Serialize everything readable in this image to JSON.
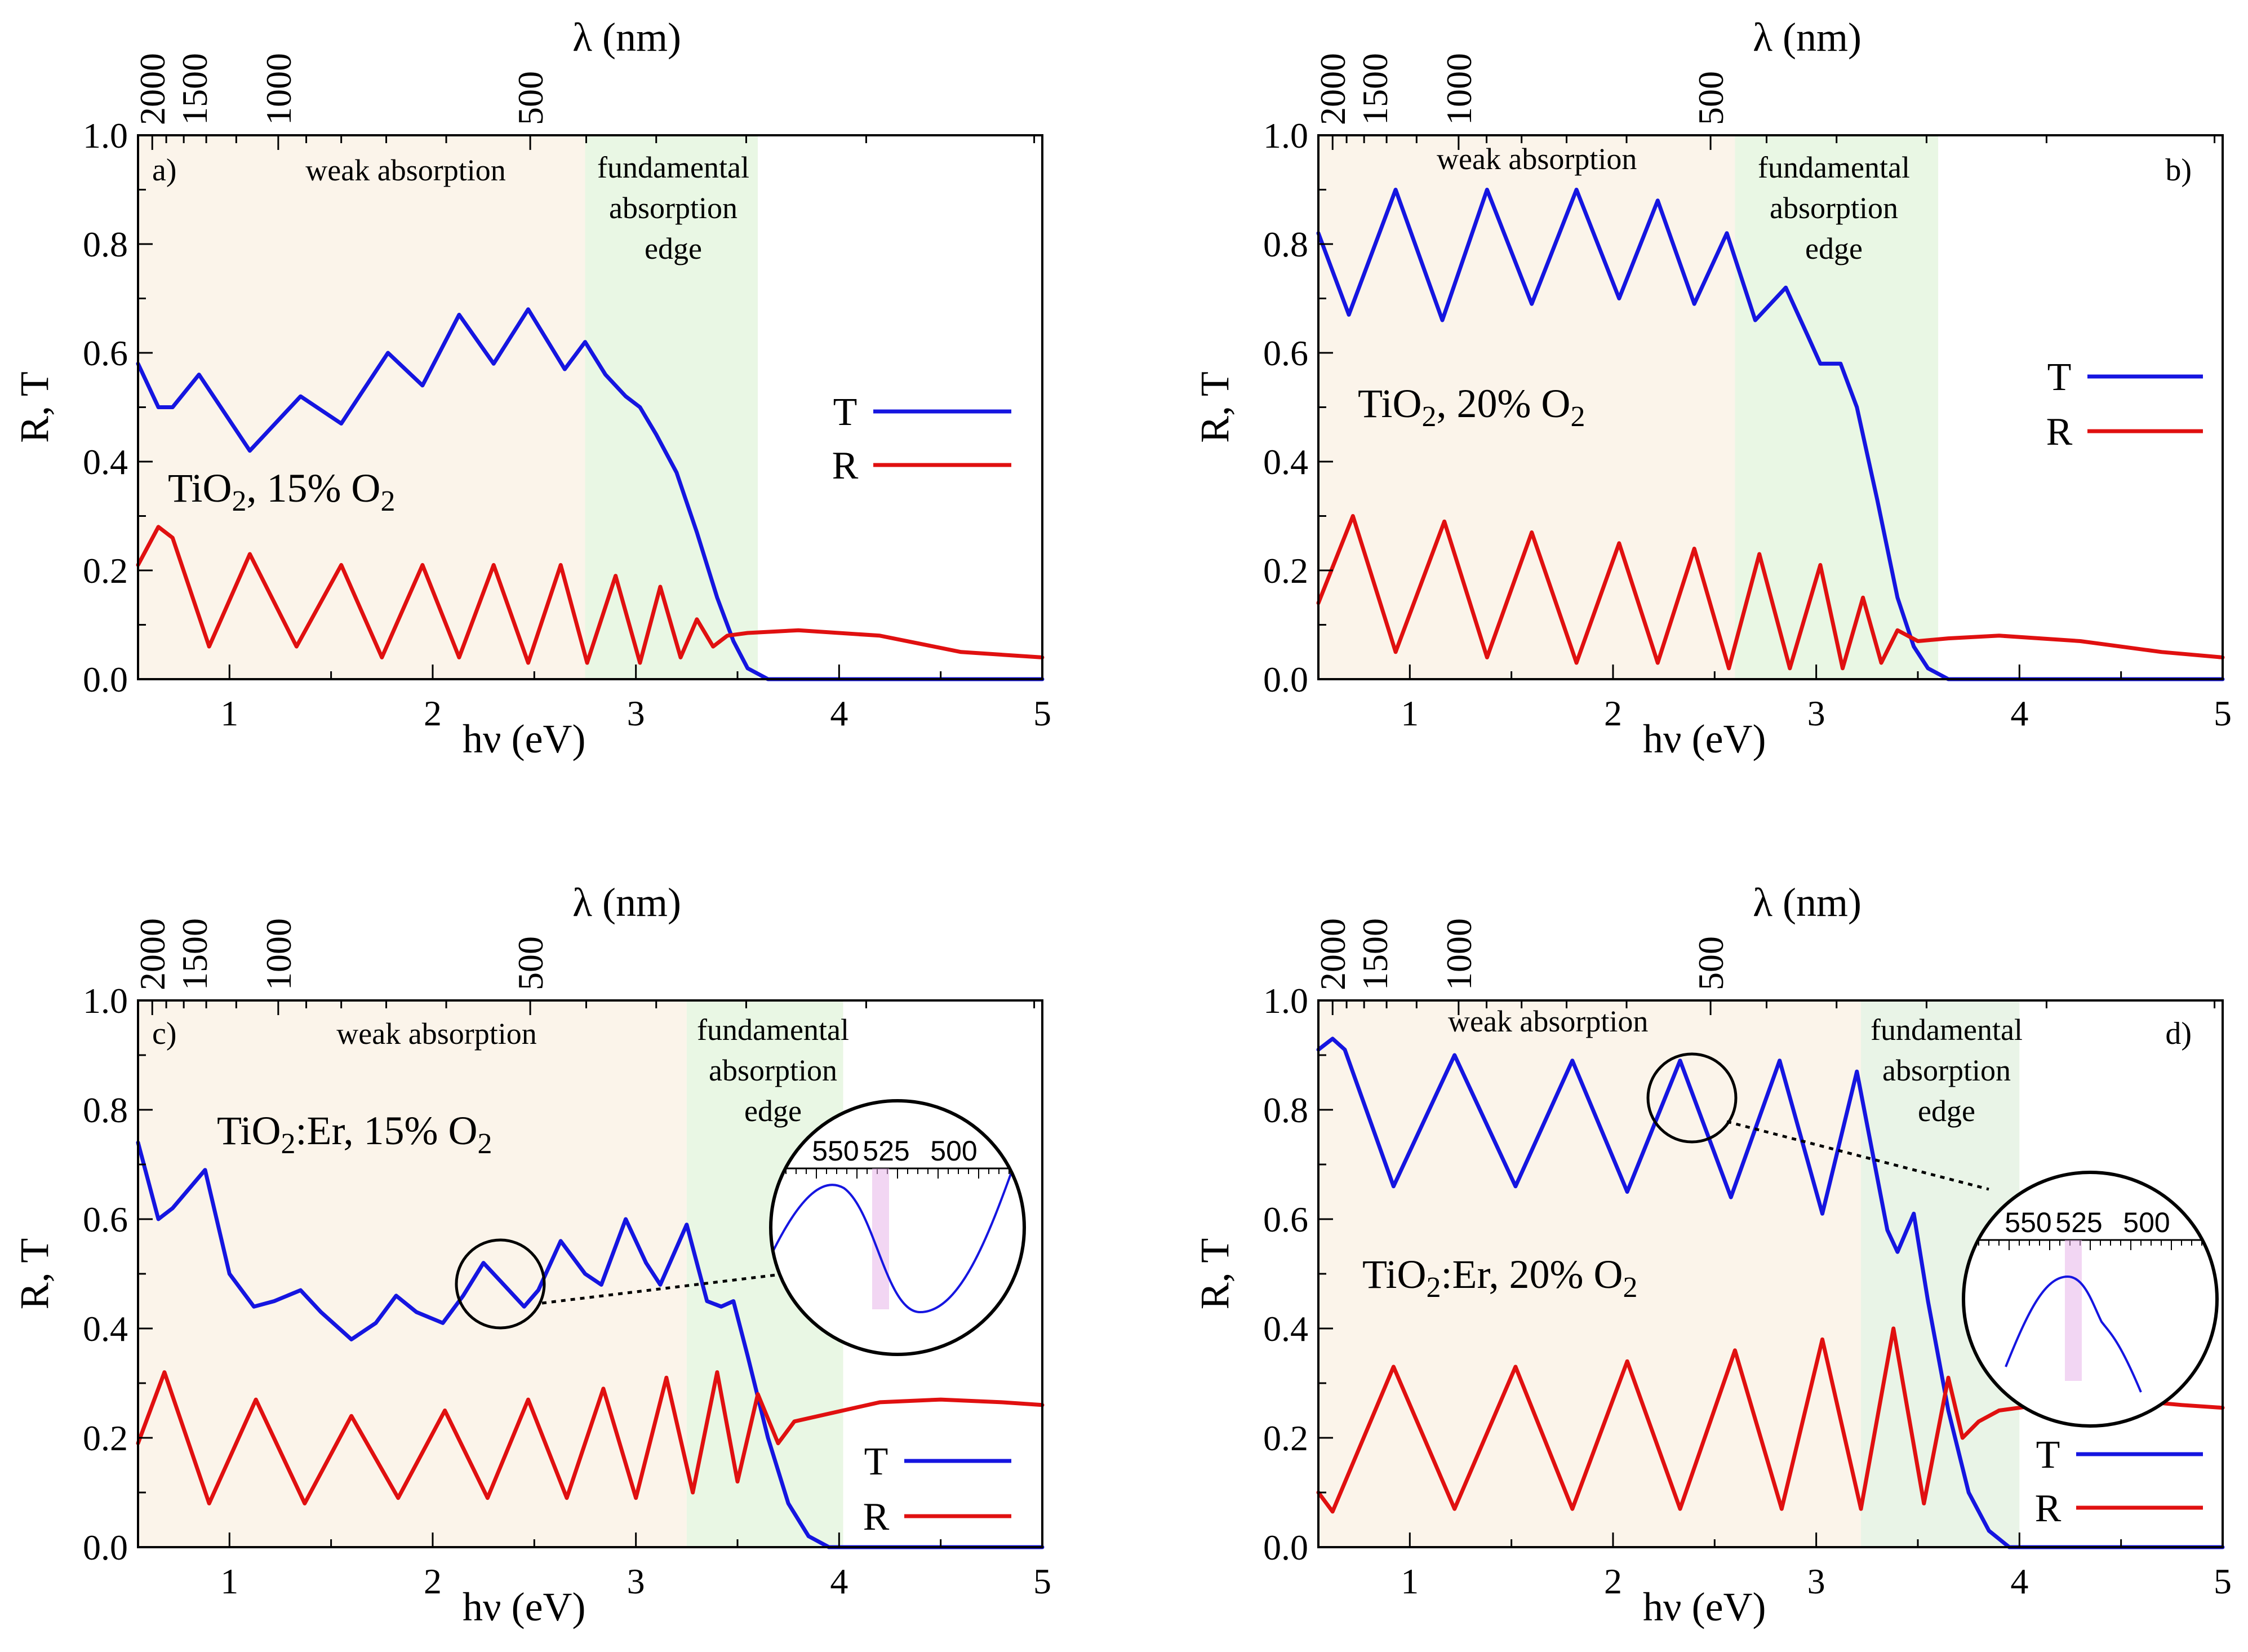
{
  "chart_data": [
    {
      "type": "line",
      "panel": "a)",
      "sample": {
        "base": "TiO",
        "sub1": "2",
        "mid": ", 15% O",
        "sub2": "2"
      },
      "xlabel": "hν (eV)",
      "ylabel": "R, T",
      "top_axis_label": "λ (nm)",
      "xlim": [
        0.55,
        5
      ],
      "ylim": [
        0,
        1
      ],
      "x_ticks": [
        1,
        2,
        3,
        4,
        5
      ],
      "y_ticks": [
        0.0,
        0.2,
        0.4,
        0.6,
        0.8,
        1.0
      ],
      "top_ticks": [
        2000,
        1500,
        1000,
        500
      ],
      "regions": [
        {
          "label": "weak absorption",
          "x0": 0.55,
          "x1": 2.75,
          "color": "#fbf4ea"
        },
        {
          "label": "fundamental\nabsorption\nedge",
          "x0": 2.75,
          "x1": 3.6,
          "color": "#e9f7e4"
        }
      ],
      "legend": [
        "T",
        "R"
      ],
      "series": [
        {
          "name": "T",
          "color": "#1515e0",
          "points": [
            [
              0.55,
              0.58
            ],
            [
              0.65,
              0.5
            ],
            [
              0.72,
              0.5
            ],
            [
              0.85,
              0.56
            ],
            [
              1.1,
              0.42
            ],
            [
              1.35,
              0.52
            ],
            [
              1.55,
              0.47
            ],
            [
              1.78,
              0.6
            ],
            [
              1.95,
              0.54
            ],
            [
              2.13,
              0.67
            ],
            [
              2.3,
              0.58
            ],
            [
              2.47,
              0.68
            ],
            [
              2.65,
              0.57
            ],
            [
              2.75,
              0.62
            ],
            [
              2.85,
              0.56
            ],
            [
              2.95,
              0.52
            ],
            [
              3.02,
              0.5
            ],
            [
              3.1,
              0.45
            ],
            [
              3.2,
              0.38
            ],
            [
              3.3,
              0.27
            ],
            [
              3.4,
              0.15
            ],
            [
              3.48,
              0.07
            ],
            [
              3.55,
              0.02
            ],
            [
              3.65,
              0.0
            ],
            [
              5.0,
              0.0
            ]
          ]
        },
        {
          "name": "R",
          "color": "#e01010",
          "points": [
            [
              0.55,
              0.21
            ],
            [
              0.65,
              0.28
            ],
            [
              0.72,
              0.26
            ],
            [
              0.9,
              0.06
            ],
            [
              1.1,
              0.23
            ],
            [
              1.33,
              0.06
            ],
            [
              1.55,
              0.21
            ],
            [
              1.75,
              0.04
            ],
            [
              1.95,
              0.21
            ],
            [
              2.13,
              0.04
            ],
            [
              2.3,
              0.21
            ],
            [
              2.47,
              0.03
            ],
            [
              2.63,
              0.21
            ],
            [
              2.76,
              0.03
            ],
            [
              2.9,
              0.19
            ],
            [
              3.02,
              0.03
            ],
            [
              3.12,
              0.17
            ],
            [
              3.22,
              0.04
            ],
            [
              3.3,
              0.11
            ],
            [
              3.38,
              0.06
            ],
            [
              3.45,
              0.08
            ],
            [
              3.55,
              0.085
            ],
            [
              3.8,
              0.09
            ],
            [
              4.2,
              0.08
            ],
            [
              4.6,
              0.05
            ],
            [
              5.0,
              0.04
            ]
          ]
        }
      ]
    },
    {
      "type": "line",
      "panel": "b)",
      "sample": {
        "base": "TiO",
        "sub1": "2",
        "mid": ", 20% O",
        "sub2": "2"
      },
      "xlabel": "hν (eV)",
      "ylabel": "R, T",
      "top_axis_label": "λ (nm)",
      "xlim": [
        0.55,
        5
      ],
      "ylim": [
        0,
        1
      ],
      "x_ticks": [
        1,
        2,
        3,
        4,
        5
      ],
      "y_ticks": [
        0.0,
        0.2,
        0.4,
        0.6,
        0.8,
        1.0
      ],
      "top_ticks": [
        2000,
        1500,
        1000,
        500
      ],
      "regions": [
        {
          "label": "weak absorption",
          "x0": 0.55,
          "x1": 2.6,
          "color": "#fbf4ea"
        },
        {
          "label": "fundamental\nabsorption\nedge",
          "x0": 2.6,
          "x1": 3.6,
          "color": "#e9f7e4"
        }
      ],
      "legend": [
        "T",
        "R"
      ],
      "series": [
        {
          "name": "T",
          "color": "#1515e0",
          "points": [
            [
              0.55,
              0.82
            ],
            [
              0.7,
              0.67
            ],
            [
              0.93,
              0.9
            ],
            [
              1.16,
              0.66
            ],
            [
              1.38,
              0.9
            ],
            [
              1.6,
              0.69
            ],
            [
              1.82,
              0.9
            ],
            [
              2.03,
              0.7
            ],
            [
              2.22,
              0.88
            ],
            [
              2.4,
              0.69
            ],
            [
              2.56,
              0.82
            ],
            [
              2.7,
              0.66
            ],
            [
              2.85,
              0.72
            ],
            [
              2.96,
              0.63
            ],
            [
              3.02,
              0.58
            ],
            [
              3.12,
              0.58
            ],
            [
              3.2,
              0.5
            ],
            [
              3.3,
              0.33
            ],
            [
              3.4,
              0.15
            ],
            [
              3.48,
              0.06
            ],
            [
              3.55,
              0.02
            ],
            [
              3.65,
              0.0
            ],
            [
              5.0,
              0.0
            ]
          ]
        },
        {
          "name": "R",
          "color": "#e01010",
          "points": [
            [
              0.55,
              0.14
            ],
            [
              0.72,
              0.3
            ],
            [
              0.93,
              0.05
            ],
            [
              1.17,
              0.29
            ],
            [
              1.38,
              0.04
            ],
            [
              1.6,
              0.27
            ],
            [
              1.82,
              0.03
            ],
            [
              2.03,
              0.25
            ],
            [
              2.22,
              0.03
            ],
            [
              2.4,
              0.24
            ],
            [
              2.57,
              0.02
            ],
            [
              2.72,
              0.23
            ],
            [
              2.87,
              0.02
            ],
            [
              3.02,
              0.21
            ],
            [
              3.13,
              0.02
            ],
            [
              3.23,
              0.15
            ],
            [
              3.32,
              0.03
            ],
            [
              3.4,
              0.09
            ],
            [
              3.5,
              0.07
            ],
            [
              3.65,
              0.075
            ],
            [
              3.9,
              0.08
            ],
            [
              4.3,
              0.07
            ],
            [
              4.7,
              0.05
            ],
            [
              5.0,
              0.04
            ]
          ]
        }
      ]
    },
    {
      "type": "line",
      "panel": "c)",
      "sample": {
        "base": "TiO",
        "sub1": "2",
        "mid": ":Er, 15% O",
        "sub2": "2"
      },
      "xlabel": "hν (eV)",
      "ylabel": "R, T",
      "top_axis_label": "λ (nm)",
      "xlim": [
        0.55,
        5
      ],
      "ylim": [
        0,
        1
      ],
      "x_ticks": [
        1,
        2,
        3,
        4,
        5
      ],
      "y_ticks": [
        0.0,
        0.2,
        0.4,
        0.6,
        0.8,
        1.0
      ],
      "top_ticks": [
        2000,
        1500,
        1000,
        500
      ],
      "regions": [
        {
          "label": "weak absorption",
          "x0": 0.55,
          "x1": 3.25,
          "color": "#fbf4ea"
        },
        {
          "label": "fundamental\nabsorption\nedge",
          "x0": 3.25,
          "x1": 4.02,
          "color": "#e9f7e4"
        }
      ],
      "legend": [
        "T",
        "R"
      ],
      "inset": {
        "ticks": [
          "550",
          "525",
          "500"
        ],
        "highlight_nm": 525
      },
      "series": [
        {
          "name": "T",
          "color": "#1515e0",
          "points": [
            [
              0.55,
              0.74
            ],
            [
              0.65,
              0.6
            ],
            [
              0.72,
              0.62
            ],
            [
              0.88,
              0.69
            ],
            [
              1.0,
              0.5
            ],
            [
              1.12,
              0.44
            ],
            [
              1.22,
              0.45
            ],
            [
              1.35,
              0.47
            ],
            [
              1.45,
              0.43
            ],
            [
              1.6,
              0.38
            ],
            [
              1.72,
              0.41
            ],
            [
              1.82,
              0.46
            ],
            [
              1.92,
              0.43
            ],
            [
              2.05,
              0.41
            ],
            [
              2.15,
              0.46
            ],
            [
              2.25,
              0.52
            ],
            [
              2.35,
              0.48
            ],
            [
              2.45,
              0.44
            ],
            [
              2.52,
              0.47
            ],
            [
              2.63,
              0.56
            ],
            [
              2.75,
              0.5
            ],
            [
              2.83,
              0.48
            ],
            [
              2.95,
              0.6
            ],
            [
              3.05,
              0.52
            ],
            [
              3.12,
              0.48
            ],
            [
              3.25,
              0.59
            ],
            [
              3.35,
              0.45
            ],
            [
              3.42,
              0.44
            ],
            [
              3.48,
              0.45
            ],
            [
              3.55,
              0.35
            ],
            [
              3.65,
              0.2
            ],
            [
              3.75,
              0.08
            ],
            [
              3.85,
              0.02
            ],
            [
              3.95,
              0.0
            ],
            [
              5.0,
              0.0
            ]
          ]
        },
        {
          "name": "R",
          "color": "#e01010",
          "points": [
            [
              0.55,
              0.19
            ],
            [
              0.68,
              0.32
            ],
            [
              0.9,
              0.08
            ],
            [
              1.13,
              0.27
            ],
            [
              1.37,
              0.08
            ],
            [
              1.6,
              0.24
            ],
            [
              1.83,
              0.09
            ],
            [
              2.06,
              0.25
            ],
            [
              2.27,
              0.09
            ],
            [
              2.47,
              0.27
            ],
            [
              2.66,
              0.09
            ],
            [
              2.84,
              0.29
            ],
            [
              3.0,
              0.09
            ],
            [
              3.15,
              0.31
            ],
            [
              3.28,
              0.1
            ],
            [
              3.4,
              0.32
            ],
            [
              3.5,
              0.12
            ],
            [
              3.6,
              0.28
            ],
            [
              3.7,
              0.19
            ],
            [
              3.78,
              0.23
            ],
            [
              3.9,
              0.24
            ],
            [
              4.2,
              0.265
            ],
            [
              4.5,
              0.27
            ],
            [
              4.8,
              0.265
            ],
            [
              5.0,
              0.26
            ]
          ]
        }
      ]
    },
    {
      "type": "line",
      "panel": "d)",
      "sample": {
        "base": "TiO",
        "sub1": "2",
        "mid": ":Er, 20% O",
        "sub2": "2"
      },
      "xlabel": "hν (eV)",
      "ylabel": "R, T",
      "top_axis_label": "λ (nm)",
      "xlim": [
        0.55,
        5
      ],
      "ylim": [
        0,
        1
      ],
      "x_ticks": [
        1,
        2,
        3,
        4,
        5
      ],
      "y_ticks": [
        0.0,
        0.2,
        0.4,
        0.6,
        0.8,
        1.0
      ],
      "top_ticks": [
        2000,
        1500,
        1000,
        500
      ],
      "regions": [
        {
          "label": "weak absorption",
          "x0": 0.55,
          "x1": 3.22,
          "color": "#fbf4ea"
        },
        {
          "label": "fundamental\nabsorption\nedge",
          "x0": 3.22,
          "x1": 4.0,
          "color": "#e9f4e7"
        }
      ],
      "legend": [
        "T",
        "R"
      ],
      "inset": {
        "ticks": [
          "550",
          "525",
          "500"
        ],
        "highlight_nm": 525
      },
      "series": [
        {
          "name": "T",
          "color": "#1515e0",
          "points": [
            [
              0.55,
              0.91
            ],
            [
              0.62,
              0.93
            ],
            [
              0.68,
              0.91
            ],
            [
              0.92,
              0.66
            ],
            [
              1.22,
              0.9
            ],
            [
              1.52,
              0.66
            ],
            [
              1.8,
              0.89
            ],
            [
              2.07,
              0.65
            ],
            [
              2.33,
              0.89
            ],
            [
              2.58,
              0.64
            ],
            [
              2.82,
              0.89
            ],
            [
              3.03,
              0.61
            ],
            [
              3.2,
              0.87
            ],
            [
              3.35,
              0.58
            ],
            [
              3.4,
              0.54
            ],
            [
              3.48,
              0.61
            ],
            [
              3.55,
              0.45
            ],
            [
              3.65,
              0.25
            ],
            [
              3.75,
              0.1
            ],
            [
              3.85,
              0.03
            ],
            [
              3.95,
              0.0
            ],
            [
              5.0,
              0.0
            ]
          ]
        },
        {
          "name": "R",
          "color": "#e01010",
          "points": [
            [
              0.55,
              0.1
            ],
            [
              0.62,
              0.065
            ],
            [
              0.92,
              0.33
            ],
            [
              1.22,
              0.07
            ],
            [
              1.52,
              0.33
            ],
            [
              1.8,
              0.07
            ],
            [
              2.07,
              0.34
            ],
            [
              2.33,
              0.07
            ],
            [
              2.6,
              0.36
            ],
            [
              2.83,
              0.07
            ],
            [
              3.03,
              0.38
            ],
            [
              3.22,
              0.07
            ],
            [
              3.38,
              0.4
            ],
            [
              3.53,
              0.08
            ],
            [
              3.65,
              0.31
            ],
            [
              3.72,
              0.2
            ],
            [
              3.8,
              0.23
            ],
            [
              3.9,
              0.25
            ],
            [
              4.2,
              0.265
            ],
            [
              4.5,
              0.27
            ],
            [
              4.8,
              0.26
            ],
            [
              5.0,
              0.255
            ]
          ]
        }
      ]
    }
  ]
}
